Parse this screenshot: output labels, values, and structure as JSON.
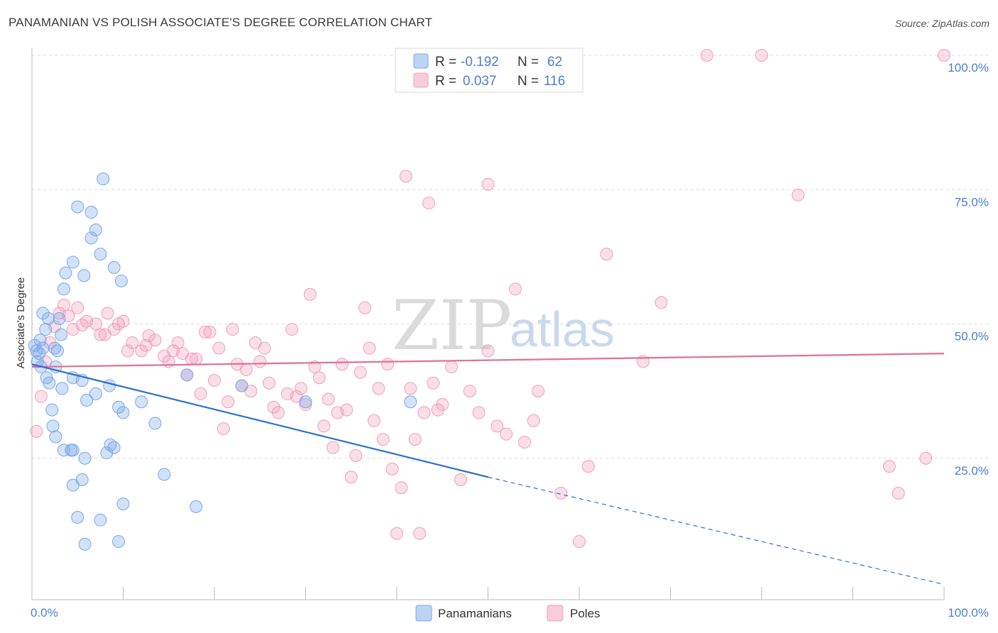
{
  "title": "PANAMANIAN VS POLISH ASSOCIATE'S DEGREE CORRELATION CHART",
  "source": "Source: ZipAtlas.com",
  "watermark": {
    "zip": "ZIP",
    "atlas": "atlas"
  },
  "colors": {
    "blue": "#7aa8e8",
    "blue_line": "#2d6fd0",
    "pink": "#f0a0bc",
    "pink_line": "#e0709a",
    "tick": "#4a7fd0"
  },
  "legend_top": {
    "rows": [
      {
        "r_label": "R =",
        "r_value": "-0.192",
        "n_label": "N =",
        "n_value": "62"
      },
      {
        "r_label": "R =",
        "r_value": "0.037",
        "n_label": "N =",
        "n_value": "116"
      }
    ]
  },
  "legend_bottom": {
    "items": [
      "Panamanians",
      "Poles"
    ]
  },
  "chart_data": {
    "type": "scatter",
    "title": "PANAMANIAN VS POLISH ASSOCIATE'S DEGREE CORRELATION CHART",
    "xlabel": "",
    "ylabel": "Associate's Degree",
    "xlim": [
      0,
      100
    ],
    "ylim": [
      0,
      100
    ],
    "x_tick_labels": [
      "0.0%",
      "100.0%"
    ],
    "y_tick_labels": [
      "25.0%",
      "50.0%",
      "75.0%",
      "100.0%"
    ],
    "y_ticks": [
      25,
      50,
      75,
      100
    ],
    "grid": true,
    "legend_position": "bottom",
    "series": [
      {
        "name": "Panamanians",
        "color": "#7aa8e8",
        "r": -0.192,
        "n": 62,
        "trend": {
          "x0": 0,
          "y0": 42.5,
          "x1": 50,
          "y1": 21.5,
          "dashed_to_x": 100,
          "dashed_to_y": 1.5
        },
        "points": [
          [
            0.3,
            46
          ],
          [
            0.5,
            45
          ],
          [
            0.8,
            44.5
          ],
          [
            0.6,
            43
          ],
          [
            1.0,
            42
          ],
          [
            1.2,
            45.5
          ],
          [
            0.9,
            47
          ],
          [
            1.5,
            49
          ],
          [
            1.8,
            51
          ],
          [
            1.2,
            52
          ],
          [
            2.5,
            45.5
          ],
          [
            2.8,
            45
          ],
          [
            3.0,
            51
          ],
          [
            3.2,
            48
          ],
          [
            2.6,
            42
          ],
          [
            1.6,
            40
          ],
          [
            1.9,
            39
          ],
          [
            3.3,
            38
          ],
          [
            2.2,
            34
          ],
          [
            2.3,
            31
          ],
          [
            4.5,
            40
          ],
          [
            5.5,
            39.5
          ],
          [
            6.0,
            35.8
          ],
          [
            7.0,
            37
          ],
          [
            8.5,
            38.5
          ],
          [
            9.5,
            34.5
          ],
          [
            10.0,
            33.5
          ],
          [
            12.0,
            35.5
          ],
          [
            13.5,
            31.5
          ],
          [
            3.5,
            26.5
          ],
          [
            4.5,
            26.5
          ],
          [
            4.3,
            26.5
          ],
          [
            2.6,
            29
          ],
          [
            5.8,
            25
          ],
          [
            5.5,
            21
          ],
          [
            4.5,
            20
          ],
          [
            8.2,
            26
          ],
          [
            8.6,
            27.5
          ],
          [
            9.0,
            27
          ],
          [
            14.5,
            22
          ],
          [
            10.0,
            16.5
          ],
          [
            5.0,
            14
          ],
          [
            7.5,
            13.5
          ],
          [
            5.8,
            9
          ],
          [
            9.5,
            9.5
          ],
          [
            18.0,
            16
          ],
          [
            3.5,
            56.5
          ],
          [
            3.7,
            59.5
          ],
          [
            4.5,
            61.5
          ],
          [
            5.0,
            71.8
          ],
          [
            6.5,
            66
          ],
          [
            6.5,
            70.8
          ],
          [
            7.0,
            67.5
          ],
          [
            7.5,
            63
          ],
          [
            7.8,
            77
          ],
          [
            9.0,
            60.5
          ],
          [
            9.8,
            58
          ],
          [
            5.7,
            59
          ],
          [
            17.0,
            40.5
          ],
          [
            23.0,
            38.5
          ],
          [
            30.0,
            35.5
          ],
          [
            41.5,
            35.5
          ]
        ]
      },
      {
        "name": "Poles",
        "color": "#f0a0bc",
        "r": 0.037,
        "n": 116,
        "trend": {
          "x0": 0,
          "y0": 42,
          "x1": 100,
          "y1": 44.5
        },
        "points": [
          [
            0.5,
            30
          ],
          [
            1.0,
            36.5
          ],
          [
            1.5,
            43
          ],
          [
            2.0,
            46.5
          ],
          [
            2.5,
            49.5
          ],
          [
            3.0,
            52
          ],
          [
            3.5,
            53.5
          ],
          [
            4.0,
            51.5
          ],
          [
            4.5,
            49
          ],
          [
            5.0,
            53
          ],
          [
            5.5,
            49.8
          ],
          [
            6.0,
            50.5
          ],
          [
            7.0,
            50
          ],
          [
            7.5,
            48
          ],
          [
            8.0,
            48
          ],
          [
            8.3,
            52
          ],
          [
            9.0,
            49
          ],
          [
            9.5,
            50
          ],
          [
            10.0,
            50.5
          ],
          [
            10.5,
            45
          ],
          [
            11.0,
            46.5
          ],
          [
            12.0,
            45
          ],
          [
            12.5,
            46
          ],
          [
            12.8,
            47.8
          ],
          [
            13.5,
            47
          ],
          [
            14.5,
            44
          ],
          [
            15.0,
            43
          ],
          [
            15.5,
            45
          ],
          [
            16.0,
            46.5
          ],
          [
            16.5,
            44.5
          ],
          [
            17.0,
            40.5
          ],
          [
            17.5,
            43.5
          ],
          [
            18.0,
            43.5
          ],
          [
            18.5,
            37
          ],
          [
            19.0,
            48.5
          ],
          [
            19.5,
            48.5
          ],
          [
            20.0,
            39.5
          ],
          [
            20.5,
            45.5
          ],
          [
            21.0,
            30.5
          ],
          [
            21.5,
            35.5
          ],
          [
            22.0,
            49
          ],
          [
            22.5,
            42.5
          ],
          [
            23.0,
            38.5
          ],
          [
            23.5,
            41.5
          ],
          [
            24.0,
            37.5
          ],
          [
            24.5,
            46.5
          ],
          [
            25.0,
            43
          ],
          [
            25.5,
            45.5
          ],
          [
            26.0,
            39
          ],
          [
            26.5,
            34.5
          ],
          [
            27.0,
            33.5
          ],
          [
            28.0,
            37
          ],
          [
            28.5,
            49
          ],
          [
            29.0,
            36.5
          ],
          [
            29.5,
            38
          ],
          [
            30.0,
            35
          ],
          [
            30.5,
            55.5
          ],
          [
            31.0,
            42
          ],
          [
            31.5,
            40
          ],
          [
            32.0,
            31
          ],
          [
            32.5,
            36
          ],
          [
            33.0,
            27
          ],
          [
            33.5,
            33.5
          ],
          [
            34.0,
            42.5
          ],
          [
            34.5,
            34
          ],
          [
            35.0,
            21.5
          ],
          [
            35.5,
            25.5
          ],
          [
            36.0,
            41
          ],
          [
            36.5,
            53
          ],
          [
            37.0,
            45.5
          ],
          [
            37.5,
            32
          ],
          [
            38.0,
            38
          ],
          [
            38.5,
            28.5
          ],
          [
            39.0,
            42.5
          ],
          [
            39.5,
            23
          ],
          [
            40.0,
            11
          ],
          [
            40.5,
            19.5
          ],
          [
            41.0,
            77.5
          ],
          [
            41.5,
            38
          ],
          [
            42.0,
            28.5
          ],
          [
            42.5,
            11
          ],
          [
            43.0,
            33.5
          ],
          [
            43.5,
            72.5
          ],
          [
            44.0,
            39
          ],
          [
            44.5,
            34
          ],
          [
            45.0,
            35
          ],
          [
            46.0,
            42
          ],
          [
            47.0,
            21
          ],
          [
            48.0,
            37.5
          ],
          [
            49.0,
            33.5
          ],
          [
            50.0,
            76
          ],
          [
            51.0,
            31
          ],
          [
            52.0,
            29.5
          ],
          [
            53.0,
            56.5
          ],
          [
            54.0,
            28
          ],
          [
            55.0,
            32
          ],
          [
            55.5,
            37.5
          ],
          [
            58.0,
            18.5
          ],
          [
            60.0,
            9.5
          ],
          [
            61.0,
            23.5
          ],
          [
            63.0,
            63
          ],
          [
            67.0,
            43
          ],
          [
            69.0,
            54
          ],
          [
            74.0,
            100
          ],
          [
            80.0,
            100
          ],
          [
            84.0,
            74
          ],
          [
            94.0,
            23.5
          ],
          [
            95.0,
            18.5
          ],
          [
            98.0,
            25
          ],
          [
            50.0,
            45
          ],
          [
            100.0,
            100
          ]
        ]
      }
    ]
  }
}
